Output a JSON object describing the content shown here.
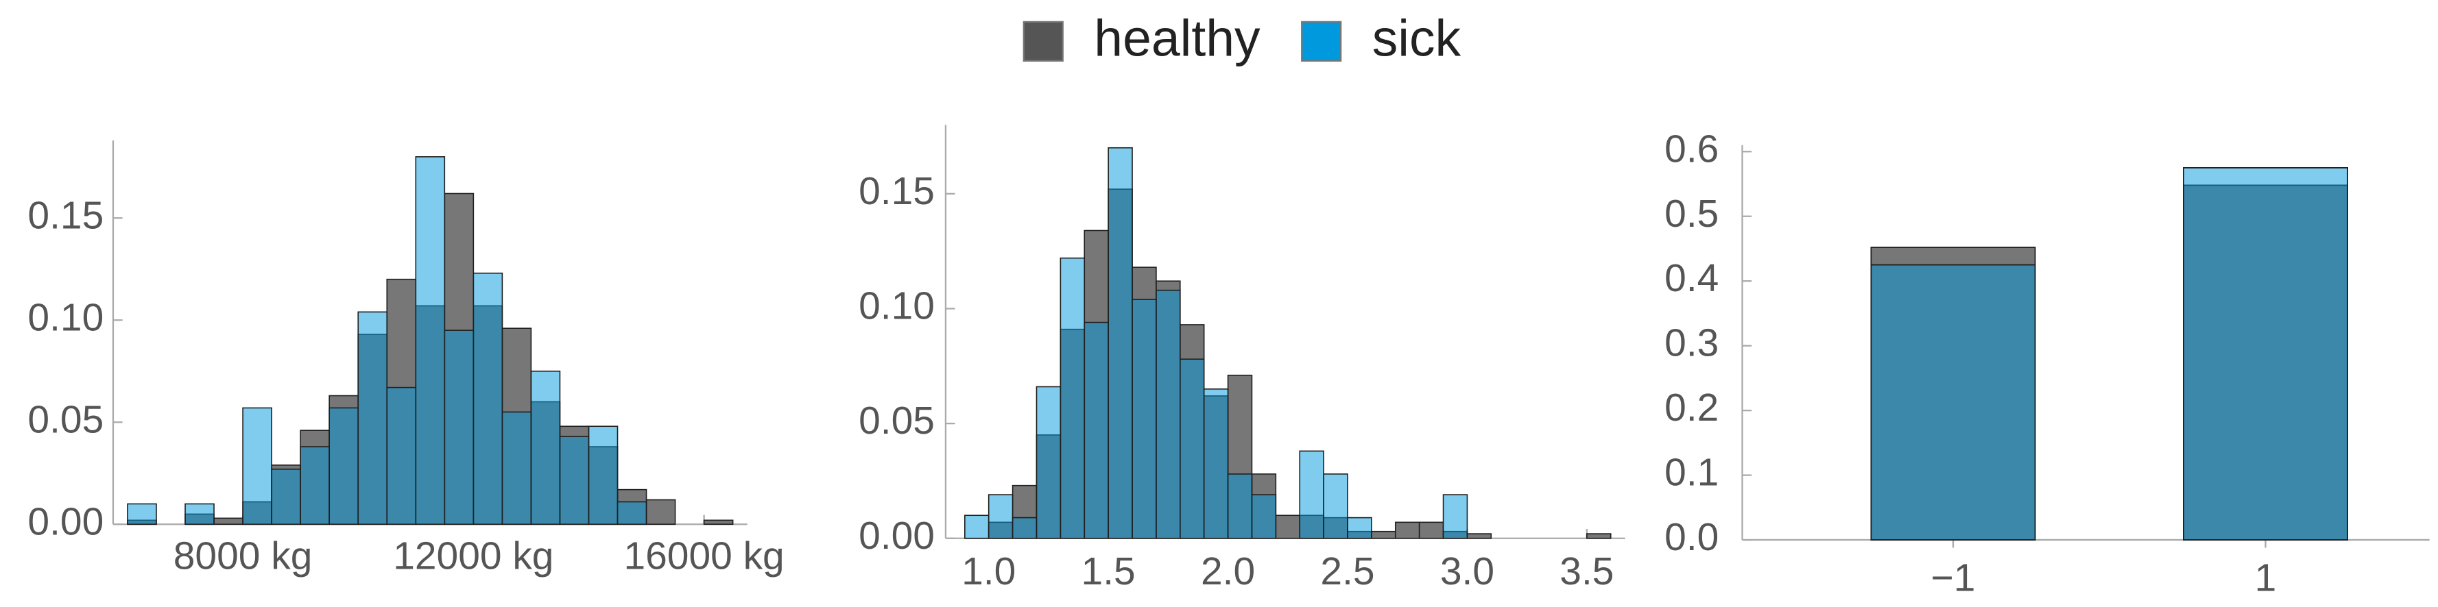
{
  "chart_data": [
    {
      "type": "histogram",
      "bins": [
        6000,
        6500,
        7000,
        7500,
        8000,
        8500,
        9000,
        9500,
        10000,
        10500,
        11000,
        11500,
        12000,
        12500,
        13000,
        13500,
        14000,
        14500,
        15000,
        15500,
        16000,
        16500
      ],
      "series": [
        {
          "name": "healthy",
          "color": "#555555",
          "values": [
            0.002,
            0,
            0.005,
            0.003,
            0.011,
            0.029,
            0.046,
            0.063,
            0.093,
            0.12,
            0.107,
            0.162,
            0.107,
            0.096,
            0.06,
            0.048,
            0.038,
            0.017,
            0.012,
            0,
            0.002
          ]
        },
        {
          "name": "sick",
          "color": "#0099dd",
          "values": [
            0.01,
            0,
            0.01,
            0,
            0.057,
            0.027,
            0.038,
            0.057,
            0.104,
            0.067,
            0.18,
            0.095,
            0.123,
            0.055,
            0.075,
            0.043,
            0.048,
            0.011,
            0,
            0,
            0
          ]
        }
      ],
      "xlim": [
        5750,
        16750
      ],
      "xticks": [
        {
          "value": 8000,
          "label": "8000 kg"
        },
        {
          "value": 12000,
          "label": "12000 kg"
        },
        {
          "value": 16000,
          "label": "16000 kg"
        }
      ],
      "ylim": [
        0,
        0.188
      ],
      "yticks": [
        {
          "value": 0,
          "label": "0.00"
        },
        0.05,
        {
          "value": 0.1,
          "label": "0.10"
        },
        0.15
      ]
    },
    {
      "type": "histogram",
      "bins": [
        0.9,
        1,
        1.1,
        1.2,
        1.3,
        1.4,
        1.5,
        1.6,
        1.7,
        1.8,
        1.9,
        2,
        2.1,
        2.2,
        2.3,
        2.4,
        2.5,
        2.6,
        2.7,
        2.8,
        2.9,
        3,
        3.1,
        3.2,
        3.3,
        3.4,
        3.5,
        3.6
      ],
      "series": [
        {
          "color": "#555555",
          "values": [
            0,
            0.007,
            0.023,
            0.045,
            0.091,
            0.134,
            0.152,
            0.118,
            0.112,
            0.093,
            0.062,
            0.071,
            0.028,
            0.01,
            0.01,
            0.009,
            0.003,
            0.003,
            0.007,
            0.007,
            0.003,
            0.002,
            0,
            0,
            0,
            0,
            0.002
          ]
        },
        {
          "color": "#0099dd",
          "values": [
            0.01,
            0.019,
            0.009,
            0.066,
            0.122,
            0.094,
            0.17,
            0.104,
            0.108,
            0.078,
            0.065,
            0.028,
            0.019,
            0,
            0.038,
            0.028,
            0.009,
            0,
            0,
            0,
            0.019,
            0,
            0,
            0,
            0,
            0,
            0
          ]
        }
      ],
      "xlim": [
        0.82,
        3.66
      ],
      "xticks": [
        {
          "value": 1,
          "label": "1.0"
        },
        1.5,
        {
          "value": 2,
          "label": "2.0"
        },
        2.5,
        {
          "value": 3,
          "label": "3.0"
        },
        3.5
      ],
      "ylim": [
        0,
        0.18
      ],
      "yticks": [
        {
          "value": 0,
          "label": "0.00"
        },
        0.05,
        {
          "value": 0.1,
          "label": "0.10"
        },
        0.15
      ]
    },
    {
      "type": "bar",
      "categories": [
        "−1",
        "1"
      ],
      "series": [
        {
          "color": "#555555",
          "values": [
            0.452,
            0.548
          ]
        },
        {
          "color": "#0099dd",
          "values": [
            0.425,
            0.575
          ]
        }
      ],
      "ylim": [
        0,
        0.61
      ],
      "yticks": [
        {
          "value": 0,
          "label": "0.0"
        },
        0.1,
        0.2,
        0.3,
        0.4,
        0.5,
        0.6
      ]
    }
  ]
}
